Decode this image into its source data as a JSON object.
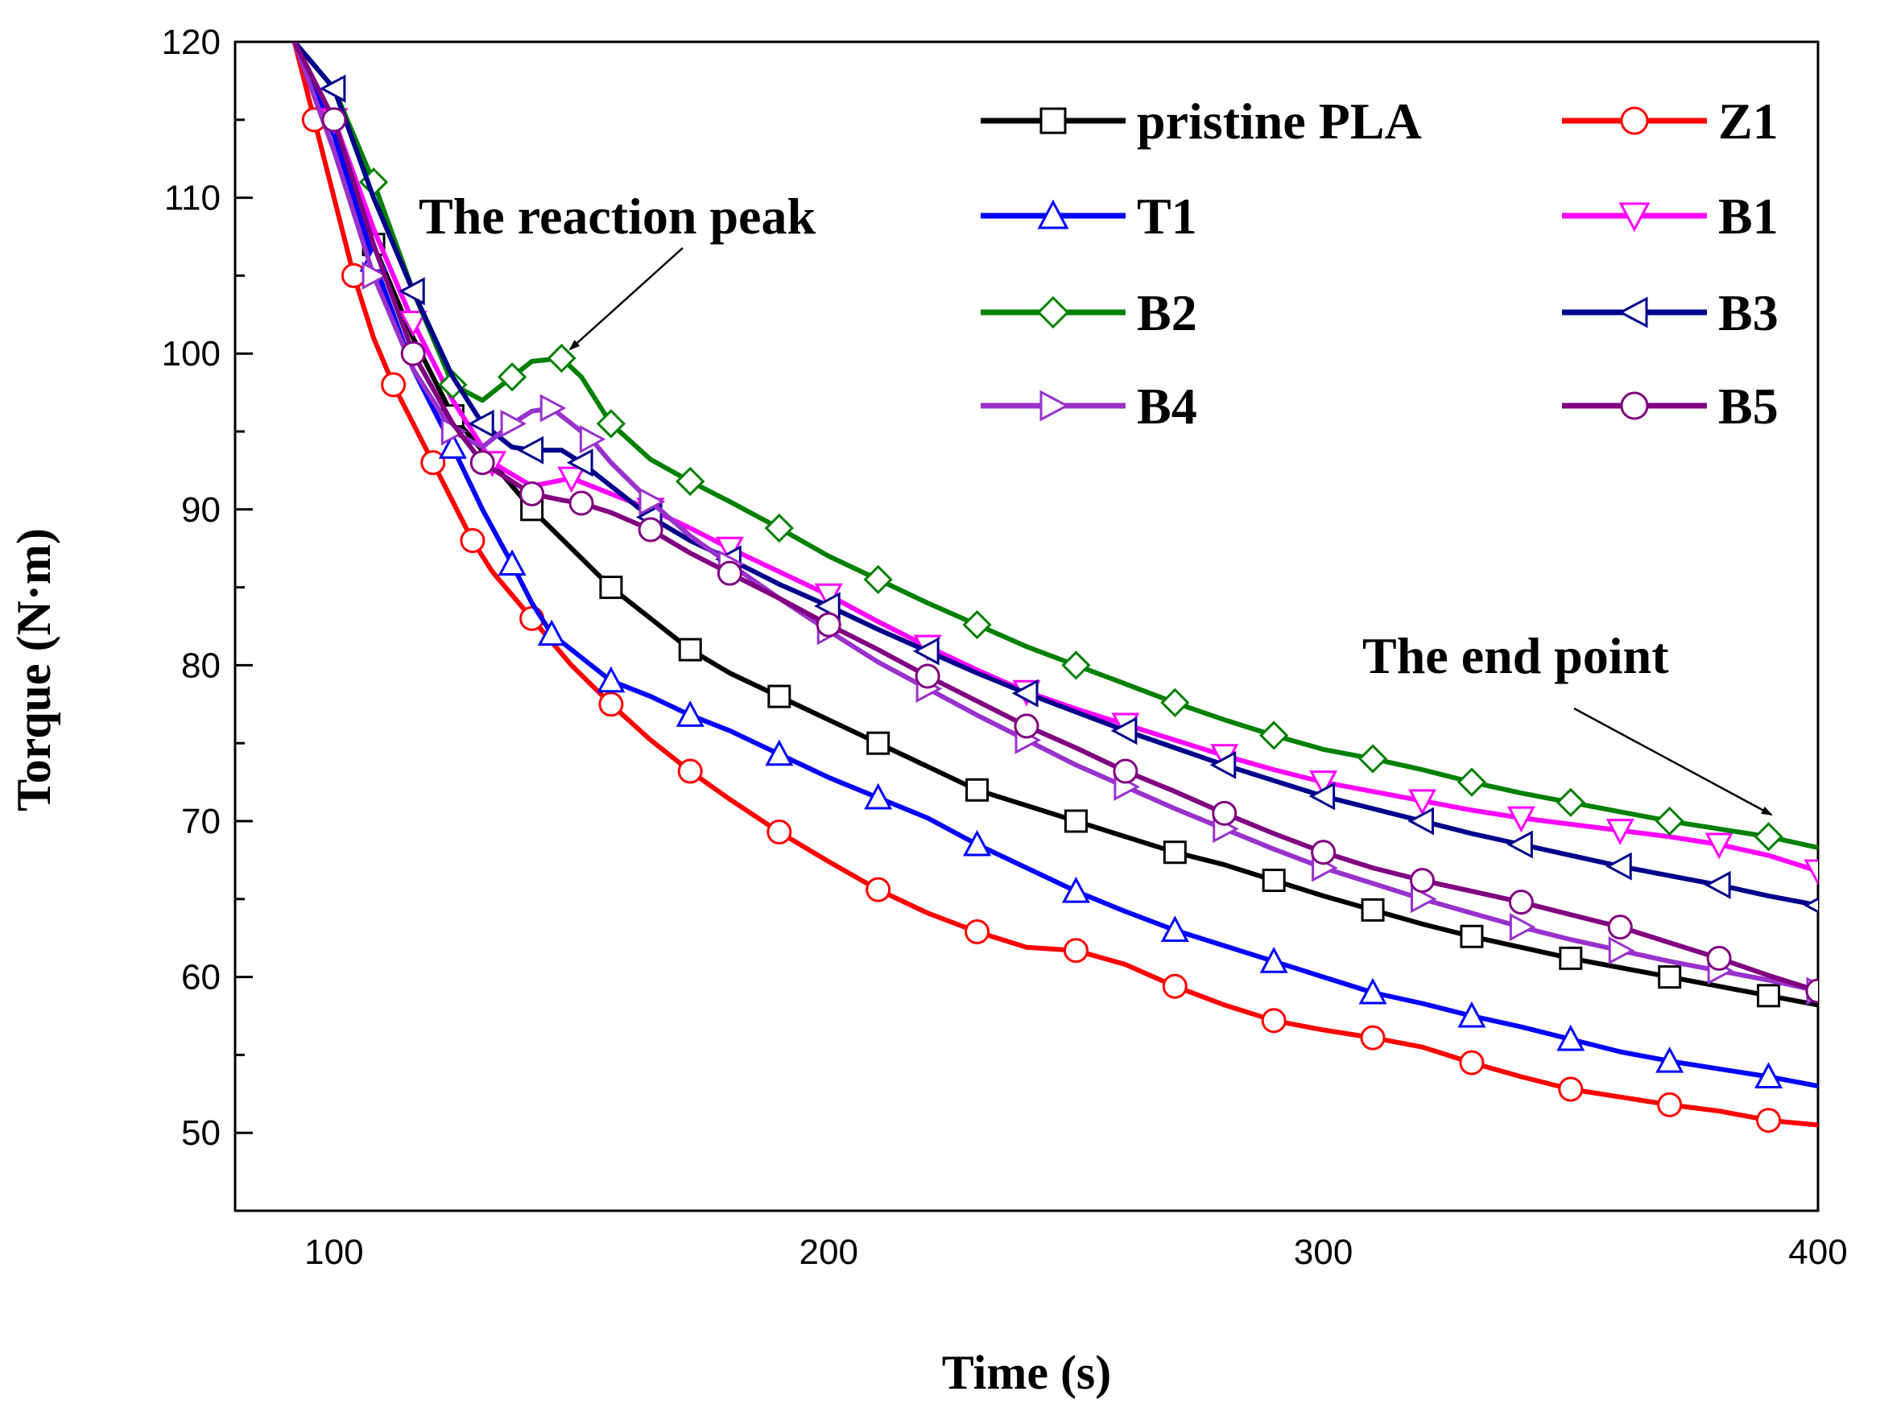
{
  "chart_data": {
    "type": "line",
    "title": "",
    "xlabel": "Time (s)",
    "ylabel": "Torque (N·m)",
    "xlim": [
      80,
      400
    ],
    "ylim": [
      45,
      120
    ],
    "xticks": [
      100,
      200,
      300,
      400
    ],
    "yticks": [
      50,
      60,
      70,
      80,
      90,
      100,
      110,
      120
    ],
    "grid": false,
    "legend_position": "top-right",
    "series": [
      {
        "name": "pristine PLA",
        "color": "#000000",
        "marker": "square",
        "x": [
          92,
          100,
          108,
          116,
          124,
          132,
          140,
          148,
          156,
          164,
          172,
          180,
          190,
          200,
          210,
          220,
          230,
          240,
          250,
          260,
          270,
          280,
          290,
          300,
          310,
          320,
          330,
          340,
          350,
          360,
          370,
          380,
          390,
          400
        ],
        "y": [
          120,
          114,
          107,
          101,
          96,
          93,
          90,
          87.5,
          85,
          83,
          81,
          79.5,
          78,
          76.5,
          75,
          73.5,
          72,
          71,
          70,
          69,
          68,
          67.2,
          66.2,
          65.2,
          64.3,
          63.4,
          62.6,
          61.9,
          61.2,
          60.6,
          60,
          59.4,
          58.8,
          58.2
        ]
      },
      {
        "name": "Z1",
        "color": "#ff0000",
        "marker": "circle",
        "x": [
          92,
          96,
          100,
          104,
          108,
          112,
          116,
          120,
          124,
          128,
          132,
          140,
          148,
          156,
          164,
          172,
          180,
          190,
          200,
          210,
          220,
          230,
          240,
          250,
          260,
          270,
          280,
          290,
          300,
          310,
          320,
          330,
          340,
          350,
          360,
          370,
          380,
          390,
          400
        ],
        "y": [
          120,
          115,
          110,
          105,
          101,
          98,
          95.5,
          93,
          90.5,
          88,
          86,
          83,
          80,
          77.5,
          75.2,
          73.2,
          71.4,
          69.3,
          67.4,
          65.6,
          64.1,
          62.9,
          61.9,
          61.7,
          60.8,
          59.4,
          58.2,
          57.2,
          56.6,
          56.1,
          55.5,
          54.5,
          53.6,
          52.8,
          52.3,
          51.8,
          51.4,
          50.8,
          50.5
        ]
      },
      {
        "name": "T1",
        "color": "#0000ff",
        "marker": "triangle-up",
        "x": [
          92,
          100,
          108,
          116,
          124,
          130,
          136,
          140,
          144,
          150,
          156,
          164,
          172,
          180,
          190,
          200,
          210,
          220,
          230,
          240,
          250,
          260,
          270,
          280,
          290,
          300,
          310,
          320,
          330,
          340,
          350,
          360,
          370,
          380,
          390,
          400
        ],
        "y": [
          120,
          114,
          106,
          99,
          94,
          90,
          86.5,
          84,
          82,
          80.5,
          79,
          78,
          76.8,
          75.8,
          74.3,
          72.8,
          71.5,
          70.2,
          68.5,
          67,
          65.5,
          64.2,
          63,
          62,
          61,
          60,
          59,
          58.3,
          57.5,
          56.8,
          56,
          55.2,
          54.6,
          54.1,
          53.6,
          53
        ]
      },
      {
        "name": "B1",
        "color": "#ff00ff",
        "marker": "triangle-down",
        "x": [
          92,
          100,
          108,
          116,
          124,
          132,
          140,
          148,
          156,
          164,
          172,
          180,
          190,
          200,
          210,
          220,
          230,
          240,
          250,
          260,
          270,
          280,
          290,
          300,
          310,
          320,
          330,
          340,
          350,
          360,
          370,
          380,
          390,
          400
        ],
        "y": [
          120,
          115,
          108,
          102,
          97,
          93,
          91.5,
          92,
          91,
          90,
          88.8,
          87.5,
          86,
          84.5,
          82.8,
          81.2,
          79.7,
          78.3,
          77.2,
          76.2,
          75.2,
          74.2,
          73.3,
          72.5,
          71.9,
          71.3,
          70.7,
          70.2,
          69.8,
          69.4,
          69,
          68.5,
          67.8,
          66.8
        ]
      },
      {
        "name": "B2",
        "color": "#008000",
        "marker": "diamond",
        "x": [
          92,
          100,
          108,
          116,
          124,
          130,
          136,
          140,
          146,
          150,
          156,
          164,
          172,
          180,
          190,
          200,
          210,
          220,
          230,
          240,
          250,
          260,
          270,
          280,
          290,
          300,
          310,
          320,
          330,
          340,
          350,
          360,
          370,
          380,
          390,
          400
        ],
        "y": [
          120,
          117,
          111,
          104,
          98,
          97,
          98.5,
          99.5,
          99.7,
          98.5,
          95.5,
          93.2,
          91.8,
          90.5,
          88.8,
          87,
          85.5,
          84,
          82.6,
          81.2,
          80,
          78.8,
          77.6,
          76.5,
          75.5,
          74.6,
          74,
          73.3,
          72.5,
          71.8,
          71.2,
          70.6,
          70,
          69.5,
          69,
          68.3
        ]
      },
      {
        "name": "B3",
        "color": "#00008b",
        "marker": "triangle-left",
        "x": [
          92,
          100,
          108,
          116,
          124,
          130,
          136,
          140,
          146,
          150,
          156,
          164,
          172,
          180,
          190,
          200,
          210,
          220,
          230,
          240,
          250,
          260,
          270,
          280,
          290,
          300,
          310,
          320,
          330,
          340,
          350,
          360,
          370,
          380,
          390,
          400
        ],
        "y": [
          120,
          117,
          110,
          104,
          98.5,
          95.5,
          94,
          93.8,
          93.8,
          93,
          91.5,
          89.5,
          88,
          86.8,
          85.2,
          83.8,
          82.3,
          80.9,
          79.5,
          78.2,
          77,
          75.8,
          74.7,
          73.6,
          72.6,
          71.6,
          70.8,
          70,
          69.2,
          68.5,
          67.8,
          67.1,
          66.5,
          65.9,
          65.2,
          64.6
        ]
      },
      {
        "name": "B4",
        "color": "#9932cc",
        "marker": "triangle-right",
        "x": [
          92,
          100,
          108,
          116,
          124,
          130,
          136,
          140,
          144,
          148,
          152,
          156,
          164,
          172,
          180,
          190,
          200,
          210,
          220,
          230,
          240,
          250,
          260,
          270,
          280,
          290,
          300,
          310,
          320,
          330,
          340,
          350,
          360,
          370,
          380,
          390,
          400
        ],
        "y": [
          120,
          113,
          105,
          99,
          95,
          94,
          95.5,
          96.3,
          96.5,
          95.5,
          94.5,
          93,
          90.5,
          88.3,
          86.5,
          84.3,
          82.2,
          80.2,
          78.5,
          76.8,
          75.2,
          73.6,
          72.2,
          70.8,
          69.5,
          68.2,
          67,
          66,
          65,
          64.1,
          63.2,
          62.4,
          61.7,
          61,
          60.4,
          59.8,
          59.1
        ]
      },
      {
        "name": "B5",
        "color": "#800080",
        "marker": "circle",
        "x": [
          92,
          100,
          108,
          116,
          124,
          130,
          136,
          140,
          146,
          150,
          156,
          164,
          172,
          180,
          190,
          200,
          210,
          220,
          230,
          240,
          250,
          260,
          270,
          280,
          290,
          300,
          310,
          320,
          330,
          340,
          350,
          360,
          370,
          380,
          390,
          400
        ],
        "y": [
          120,
          115,
          107,
          100,
          95.5,
          93,
          91.8,
          91,
          90.6,
          90.4,
          89.8,
          88.7,
          87.2,
          85.9,
          84.3,
          82.6,
          81,
          79.3,
          77.7,
          76.1,
          74.7,
          73.2,
          71.9,
          70.5,
          69.2,
          68,
          67,
          66.2,
          65.5,
          64.8,
          64,
          63.2,
          62.2,
          61.2,
          60.1,
          59.1
        ]
      }
    ],
    "annotations": [
      {
        "text": "The reaction peak",
        "target": {
          "x": 146,
          "y": 100
        }
      },
      {
        "text": "The end point",
        "target": {
          "x": 392,
          "y": 69
        }
      }
    ]
  }
}
